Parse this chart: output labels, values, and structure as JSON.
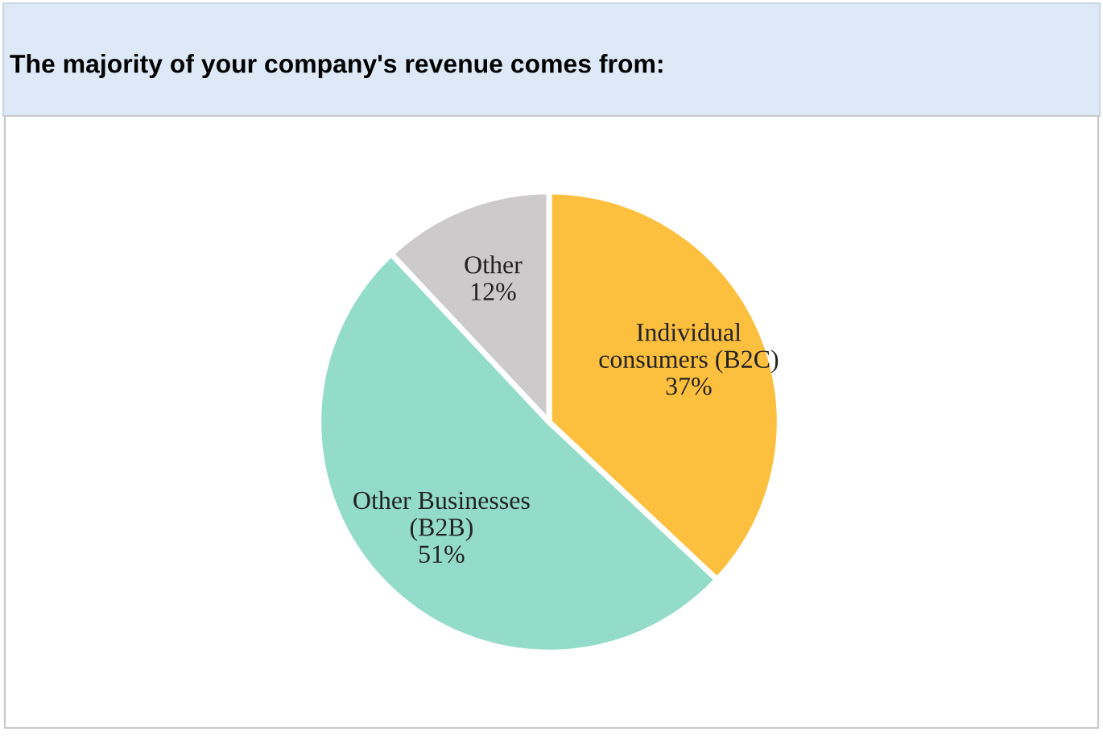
{
  "chart_data": {
    "type": "pie",
    "title": "The majority of your company's revenue comes from:",
    "categories": [
      "Individual\nconsumers (B2C)",
      "Other Businesses\n(B2B)",
      "Other"
    ],
    "values": [
      37,
      51,
      12
    ],
    "value_labels": [
      "37%",
      "51%",
      "12%"
    ],
    "colors": [
      "#fdbf3e",
      "#93dcc9",
      "#cdcacb"
    ],
    "legend": false
  }
}
